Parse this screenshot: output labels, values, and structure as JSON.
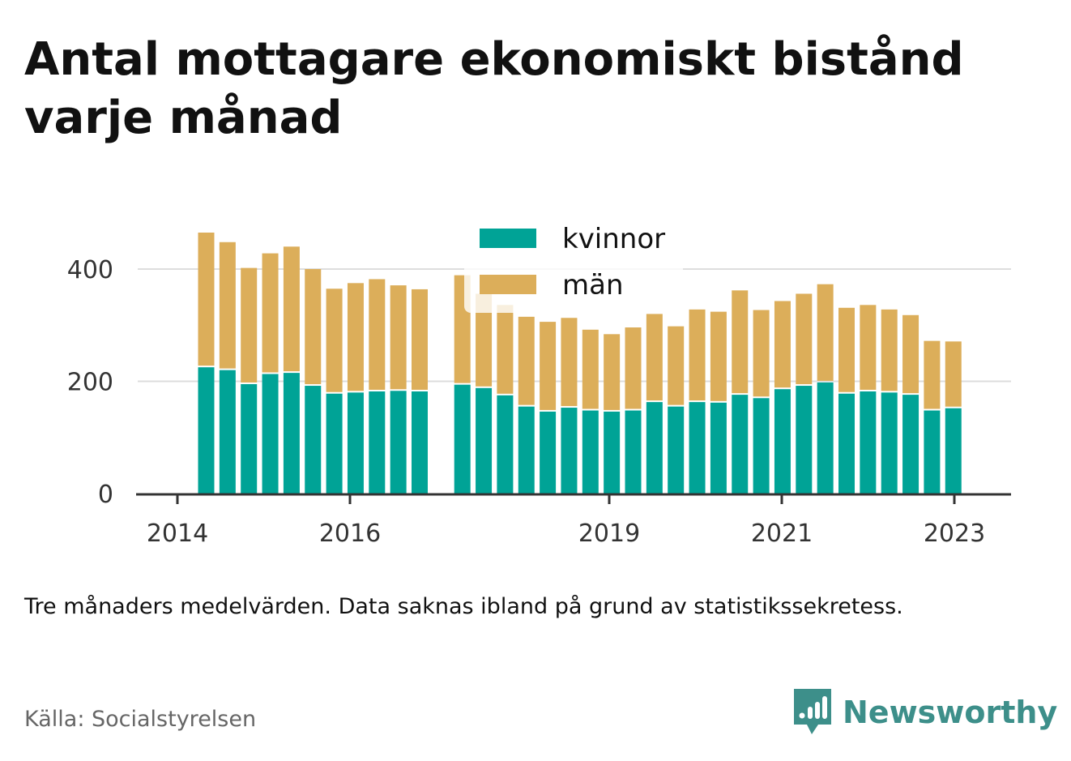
{
  "title": "Antal mottagare ekonomiskt bistånd varje månad",
  "note": "Tre månaders medelvärden. Data saknas ibland på grund av statistikssekretess.",
  "source": "Källa: Socialstyrelsen",
  "brand": "Newsworthy",
  "colors": {
    "kvinnor": "#00a396",
    "man": "#dcae5a",
    "grid": "#dddddd",
    "axis": "#333333"
  },
  "chart_data": {
    "type": "bar",
    "stacked": true,
    "x_ticks": [
      "2014",
      "2016",
      "2019",
      "2021",
      "2023"
    ],
    "y_ticks": [
      "0",
      "200",
      "400"
    ],
    "ylim": [
      0,
      480
    ],
    "legend": [
      "kvinnor",
      "män"
    ],
    "legend_position": "top-center",
    "grid": true,
    "series": [
      {
        "name": "kvinnor",
        "values": [
          225,
          220,
          195,
          213,
          215,
          192,
          178,
          180,
          182,
          183,
          182,
          null,
          194,
          188,
          175,
          155,
          146,
          153,
          148,
          146,
          148,
          163,
          155,
          163,
          162,
          176,
          170,
          186,
          192,
          198,
          178,
          182,
          180,
          176,
          148,
          152
        ]
      },
      {
        "name": "män",
        "values": [
          240,
          228,
          207,
          215,
          225,
          208,
          187,
          195,
          200,
          188,
          182,
          null,
          195,
          168,
          161,
          160,
          160,
          160,
          144,
          138,
          148,
          157,
          143,
          165,
          162,
          186,
          157,
          157,
          164,
          175,
          153,
          154,
          148,
          142,
          124,
          119
        ]
      }
    ]
  }
}
